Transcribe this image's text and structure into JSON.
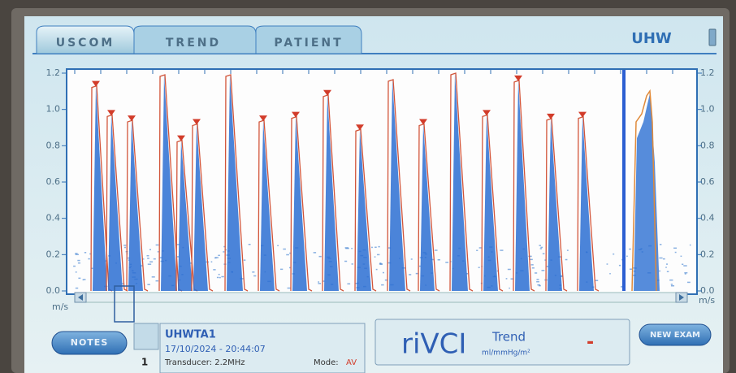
{
  "tabs": [
    "USCOM",
    "TREND",
    "PATIENT"
  ],
  "device_label": "UHW",
  "plot": {
    "ylim": [
      0,
      1.2
    ],
    "yticks": [
      {
        "value": 0,
        "label": "0.0"
      },
      0.2,
      0.4,
      0.6,
      0.8,
      {
        "value": 1,
        "label": "1.0"
      },
      1.2
    ],
    "unit": "m/s",
    "peaks": [
      1.13,
      0.97,
      0.94,
      0.83,
      0.92,
      0.94,
      0.96,
      1.08,
      0.89,
      0.92,
      0.97,
      1.16,
      0.95,
      0.96
    ]
  },
  "buttons": {
    "notes": "NOTES",
    "new_exam": "NEW EXAM"
  },
  "patient": {
    "index": "1",
    "id": "UHWTA1",
    "datetime": "17/10/2024 - 20:44:07",
    "transducer": "Transducer: 2.2MHz",
    "mode_label": "Mode:",
    "mode": "AV"
  },
  "rivci": {
    "title": "riVCI",
    "trend": "Trend",
    "unit": "ml/mmHg/m²",
    "value": "-"
  }
}
